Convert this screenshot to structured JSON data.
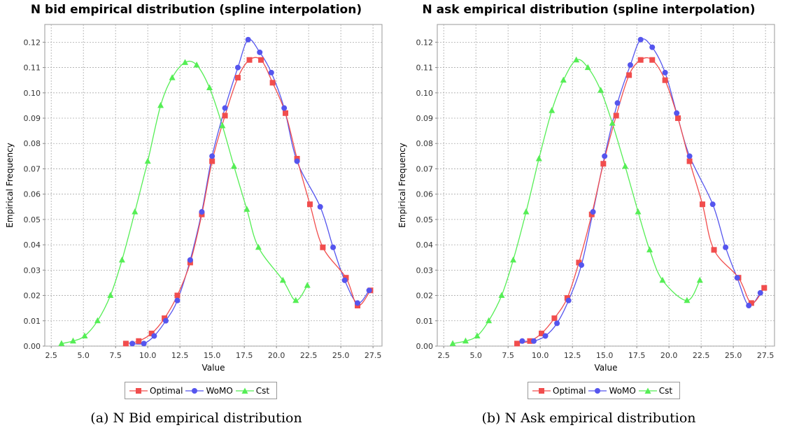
{
  "chart_data": [
    {
      "type": "line",
      "title": "N bid empirical distribution (spline interpolation)",
      "xlabel": "Value",
      "ylabel": "Empirical Frequency",
      "xlim": [
        2.0,
        28.2
      ],
      "ylim": [
        0.0,
        0.127
      ],
      "xticks": [
        "2.5",
        "5.0",
        "7.5",
        "10.0",
        "12.5",
        "15.0",
        "17.5",
        "20.0",
        "22.5",
        "25.0",
        "27.5"
      ],
      "yticks": [
        "0.00",
        "0.01",
        "0.02",
        "0.03",
        "0.04",
        "0.05",
        "0.06",
        "0.07",
        "0.08",
        "0.09",
        "0.10",
        "0.11",
        "0.12"
      ],
      "grid": true,
      "legend": "bottom",
      "caption": "(a) N Bid empirical distribution",
      "series": [
        {
          "name": "Optimal",
          "color": "#f14d4d",
          "marker": "square",
          "x": [
            8.3,
            9.3,
            10.3,
            11.3,
            12.3,
            13.3,
            14.2,
            15.0,
            16.0,
            17.0,
            17.9,
            18.8,
            19.7,
            20.7,
            21.6,
            22.6,
            23.6,
            25.4,
            26.3,
            27.3
          ],
          "y": [
            0.001,
            0.002,
            0.005,
            0.011,
            0.02,
            0.033,
            0.052,
            0.073,
            0.091,
            0.106,
            0.113,
            0.113,
            0.104,
            0.092,
            0.074,
            0.056,
            0.039,
            0.027,
            0.016,
            0.022
          ]
        },
        {
          "name": "WoMO",
          "color": "#5555ee",
          "marker": "circle",
          "x": [
            8.8,
            9.7,
            10.5,
            11.4,
            12.3,
            13.3,
            14.2,
            15.0,
            16.0,
            17.0,
            17.8,
            18.7,
            19.6,
            20.6,
            21.6,
            23.4,
            24.4,
            25.3,
            26.3,
            27.2
          ],
          "y": [
            0.001,
            0.001,
            0.004,
            0.01,
            0.018,
            0.034,
            0.053,
            0.075,
            0.094,
            0.11,
            0.121,
            0.116,
            0.108,
            0.094,
            0.073,
            0.055,
            0.039,
            0.026,
            0.017,
            0.022
          ]
        },
        {
          "name": "Cst",
          "color": "#55ee55",
          "marker": "triangle",
          "x": [
            3.3,
            4.2,
            5.1,
            6.1,
            7.1,
            8.0,
            9.0,
            10.0,
            11.0,
            11.9,
            12.9,
            13.8,
            14.8,
            15.8,
            16.7,
            17.7,
            18.6,
            20.5,
            21.5,
            22.4
          ],
          "y": [
            0.001,
            0.002,
            0.004,
            0.01,
            0.02,
            0.034,
            0.053,
            0.073,
            0.095,
            0.106,
            0.112,
            0.111,
            0.102,
            0.087,
            0.071,
            0.054,
            0.039,
            0.026,
            0.018,
            0.024
          ]
        }
      ]
    },
    {
      "type": "line",
      "title": "N ask empirical distribution (spline interpolation)",
      "xlabel": "Value",
      "ylabel": "Empirical Frequency",
      "xlim": [
        2.0,
        28.2
      ],
      "ylim": [
        0.0,
        0.127
      ],
      "xticks": [
        "2.5",
        "5.0",
        "7.5",
        "10.0",
        "12.5",
        "15.0",
        "17.5",
        "20.0",
        "22.5",
        "25.0",
        "27.5"
      ],
      "yticks": [
        "0.00",
        "0.01",
        "0.02",
        "0.03",
        "0.04",
        "0.05",
        "0.06",
        "0.07",
        "0.08",
        "0.09",
        "0.10",
        "0.11",
        "0.12"
      ],
      "grid": true,
      "legend": "bottom",
      "caption": "(b) N Ask empirical distribution",
      "series": [
        {
          "name": "Optimal",
          "color": "#f14d4d",
          "marker": "square",
          "x": [
            8.2,
            9.2,
            10.1,
            11.1,
            12.1,
            13.0,
            14.0,
            14.9,
            15.9,
            16.9,
            17.8,
            18.7,
            19.7,
            20.7,
            21.6,
            22.6,
            23.5,
            25.4,
            26.4,
            27.4
          ],
          "y": [
            0.001,
            0.002,
            0.005,
            0.011,
            0.019,
            0.033,
            0.052,
            0.072,
            0.091,
            0.107,
            0.113,
            0.113,
            0.105,
            0.09,
            0.073,
            0.056,
            0.038,
            0.027,
            0.017,
            0.023
          ]
        },
        {
          "name": "WoMO",
          "color": "#5555ee",
          "marker": "circle",
          "x": [
            8.6,
            9.5,
            10.4,
            11.3,
            12.2,
            13.2,
            14.1,
            15.0,
            16.0,
            17.0,
            17.8,
            18.7,
            19.7,
            20.6,
            21.6,
            23.4,
            24.4,
            25.3,
            26.2,
            27.1
          ],
          "y": [
            0.002,
            0.002,
            0.004,
            0.009,
            0.018,
            0.032,
            0.053,
            0.075,
            0.096,
            0.111,
            0.121,
            0.118,
            0.108,
            0.092,
            0.075,
            0.056,
            0.039,
            0.027,
            0.016,
            0.021
          ]
        },
        {
          "name": "Cst",
          "color": "#55ee55",
          "marker": "triangle",
          "x": [
            3.2,
            4.2,
            5.1,
            6.0,
            7.0,
            7.9,
            8.9,
            9.9,
            10.9,
            11.8,
            12.8,
            13.7,
            14.7,
            15.6,
            16.6,
            17.6,
            18.5,
            19.5,
            21.4,
            22.4
          ],
          "y": [
            0.001,
            0.002,
            0.004,
            0.01,
            0.02,
            0.034,
            0.053,
            0.074,
            0.093,
            0.105,
            0.113,
            0.11,
            0.101,
            0.088,
            0.071,
            0.053,
            0.038,
            0.026,
            0.018,
            0.026
          ]
        }
      ]
    }
  ]
}
